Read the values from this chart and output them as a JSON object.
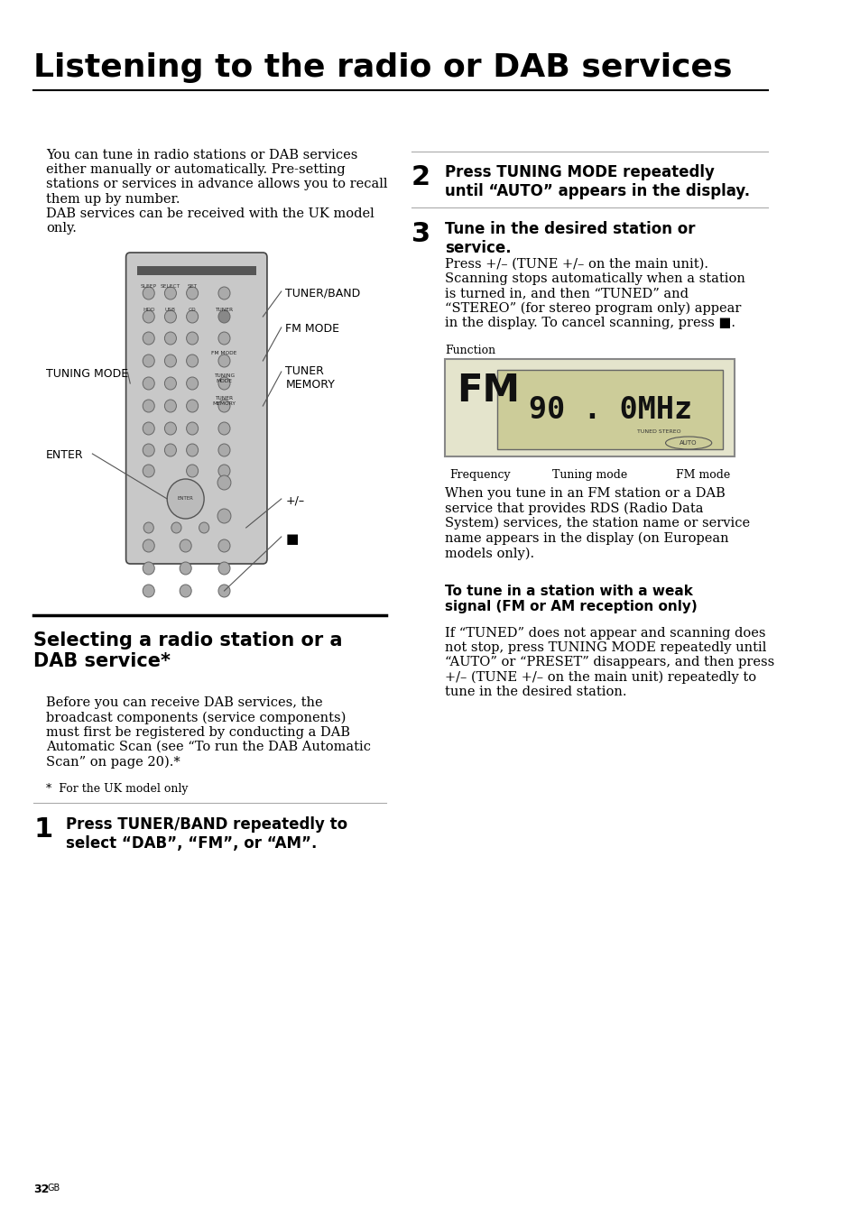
{
  "title": "Listening to the radio or DAB services",
  "bg_color": "#ffffff",
  "text_color": "#000000",
  "page_number": "32",
  "intro_text": "You can tune in radio stations or DAB services\neither manually or automatically. Pre-setting\nstations or services in advance allows you to recall\nthem up by number.\nDAB services can be received with the UK model\nonly.",
  "section2_title": "Selecting a radio station or a\nDAB service*",
  "section2_body": "Before you can receive DAB services, the\nbroadcast components (service components)\nmust first be registered by conducting a DAB\nAutomatic Scan (see “To run the DAB Automatic\nScan” on page 20).*",
  "section2_footnote": "*  For the UK model only",
  "step1_num": "1",
  "step1_text": "Press TUNER/BAND repeatedly to\nselect “DAB”, “FM”, or “AM”.",
  "step2_num": "2",
  "step2_text": "Press TUNING MODE repeatedly\nuntil “AUTO” appears in the display.",
  "step3_num": "3",
  "step3_text": "Tune in the desired station or\nservice.",
  "step3_body": "Press +/– (TUNE +/– on the main unit).\nScanning stops automatically when a station\nis turned in, and then “TUNED” and\n“STEREO” (for stereo program only) appear\nin the display. To cancel scanning, press ■.",
  "weak_signal_title": "To tune in a station with a weak\nsignal (FM or AM reception only)",
  "weak_signal_body": "If “TUNED” does not appear and scanning does\nnot stop, press TUNING MODE repeatedly until\n“AUTO” or “PRESET” disappears, and then press\n+/– (TUNE +/– on the main unit) repeatedly to\ntune in the desired station.",
  "label_tuner_band": "TUNER/BAND",
  "label_fm_mode": "FM MODE",
  "label_tuning_mode": "TUNING MODE",
  "label_tuner_memory": "TUNER\nMEMORY",
  "label_enter": "ENTER",
  "label_plus_minus": "+/–",
  "label_stop": "■",
  "display_fm_label": "FM",
  "display_freq": "90 . 0MHz",
  "display_function": "Function",
  "display_frequency": "Frequency",
  "display_tuning_mode": "Tuning mode",
  "display_fm_mode": "FM mode",
  "after_display_text": "When you tune in an FM station or a DAB\nservice that provides RDS (Radio Data\nSystem) services, the station name or service\nname appears in the display (on European\nmodels only)."
}
